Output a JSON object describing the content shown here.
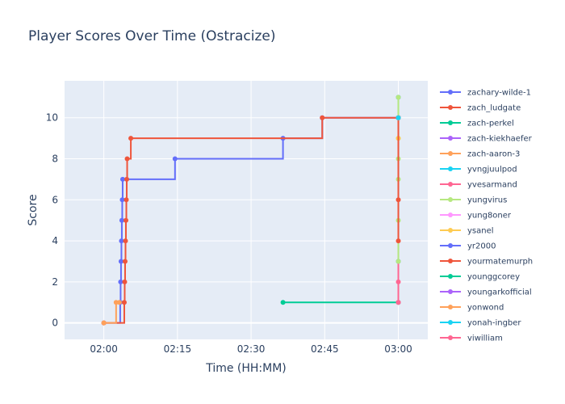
{
  "chart_data": {
    "type": "line",
    "line_shape": "step",
    "title": "Player Scores Over Time (Ostracize)",
    "xlabel": "Time (HH:MM)",
    "ylabel": "Score",
    "xlim": [
      "01:52",
      "03:06"
    ],
    "ylim": [
      -0.8,
      11.8
    ],
    "x_ticks": [
      "02:00",
      "02:15",
      "02:30",
      "02:45",
      "03:00"
    ],
    "y_ticks": [
      0,
      2,
      4,
      6,
      8,
      10
    ],
    "grid": true,
    "legend_position": "right",
    "colors": {
      "plot_bg": "#e5ecf6",
      "grid": "#ffffff",
      "text": "#2a3f5f"
    },
    "series": [
      {
        "name": "zachary-wilde-1",
        "color": "#636efa",
        "x": [
          "02:00",
          "02:03:20",
          "02:03:25",
          "02:03:30",
          "02:03:35",
          "02:03:40",
          "02:03:45",
          "02:03:50",
          "02:14:30",
          "02:36:30",
          "02:44:30",
          "03:00"
        ],
        "y": [
          0,
          1,
          2,
          3,
          4,
          5,
          6,
          7,
          8,
          9,
          10,
          10
        ]
      },
      {
        "name": "zach_ludgate",
        "color": "#ef553b",
        "x": [
          "02:00",
          "02:04:10",
          "02:04:15",
          "02:04:20",
          "02:04:25",
          "02:04:30",
          "02:04:35",
          "02:04:40",
          "02:04:45",
          "02:05:30",
          "02:44:30",
          "03:00"
        ],
        "y": [
          0,
          1,
          2,
          3,
          4,
          5,
          6,
          7,
          8,
          9,
          10,
          10
        ]
      },
      {
        "name": "zach-perkel",
        "color": "#00cc96",
        "x": [
          "02:36:30",
          "03:00"
        ],
        "y": [
          1,
          1
        ]
      },
      {
        "name": "zach-kiekhaefer",
        "color": "#ab63fa",
        "x": [
          "03:00",
          "03:00"
        ],
        "y": [
          3,
          11
        ]
      },
      {
        "name": "zach-aaron-3",
        "color": "#ffa15a",
        "x": [
          "02:00",
          "02:02:30",
          "02:03:10"
        ],
        "y": [
          0,
          1,
          1
        ]
      },
      {
        "name": "yvngjuulpod",
        "color": "#19d3f3",
        "x": [
          "03:00",
          "03:00"
        ],
        "y": [
          3,
          11
        ]
      },
      {
        "name": "yvesarmand",
        "color": "#ff6692",
        "x": [
          "03:00",
          "03:00"
        ],
        "y": [
          1,
          10
        ]
      },
      {
        "name": "yungvirus",
        "color": "#b6e880",
        "x": [
          "03:00",
          "03:00",
          "03:00",
          "03:00",
          "03:00",
          "03:00"
        ],
        "y": [
          3,
          5,
          7,
          8,
          9,
          11
        ]
      },
      {
        "name": "yung8oner",
        "color": "#ff97ff",
        "x": [
          "03:00"
        ],
        "y": [
          10
        ]
      },
      {
        "name": "ysanel",
        "color": "#fecb52",
        "x": [
          "03:00",
          "03:00"
        ],
        "y": [
          9,
          10
        ]
      },
      {
        "name": "yr2000",
        "color": "#636efa",
        "x": [
          "03:00"
        ],
        "y": [
          10
        ]
      },
      {
        "name": "yourmatemurph",
        "color": "#ef553b",
        "x": [
          "03:00",
          "03:00",
          "03:00"
        ],
        "y": [
          4,
          6,
          10
        ]
      },
      {
        "name": "younggcorey",
        "color": "#00cc96",
        "x": [
          "03:00"
        ],
        "y": [
          10
        ]
      },
      {
        "name": "youngarkofficial",
        "color": "#ab63fa",
        "x": [
          "03:00"
        ],
        "y": [
          10
        ]
      },
      {
        "name": "yonwond",
        "color": "#ffa15a",
        "x": [
          "03:00"
        ],
        "y": [
          10
        ]
      },
      {
        "name": "yonah-ingber",
        "color": "#19d3f3",
        "x": [
          "03:00"
        ],
        "y": [
          10
        ]
      },
      {
        "name": "yiwilliam",
        "color": "#ff6692",
        "x": [
          "03:00",
          "03:00"
        ],
        "y": [
          1,
          2
        ]
      }
    ]
  }
}
